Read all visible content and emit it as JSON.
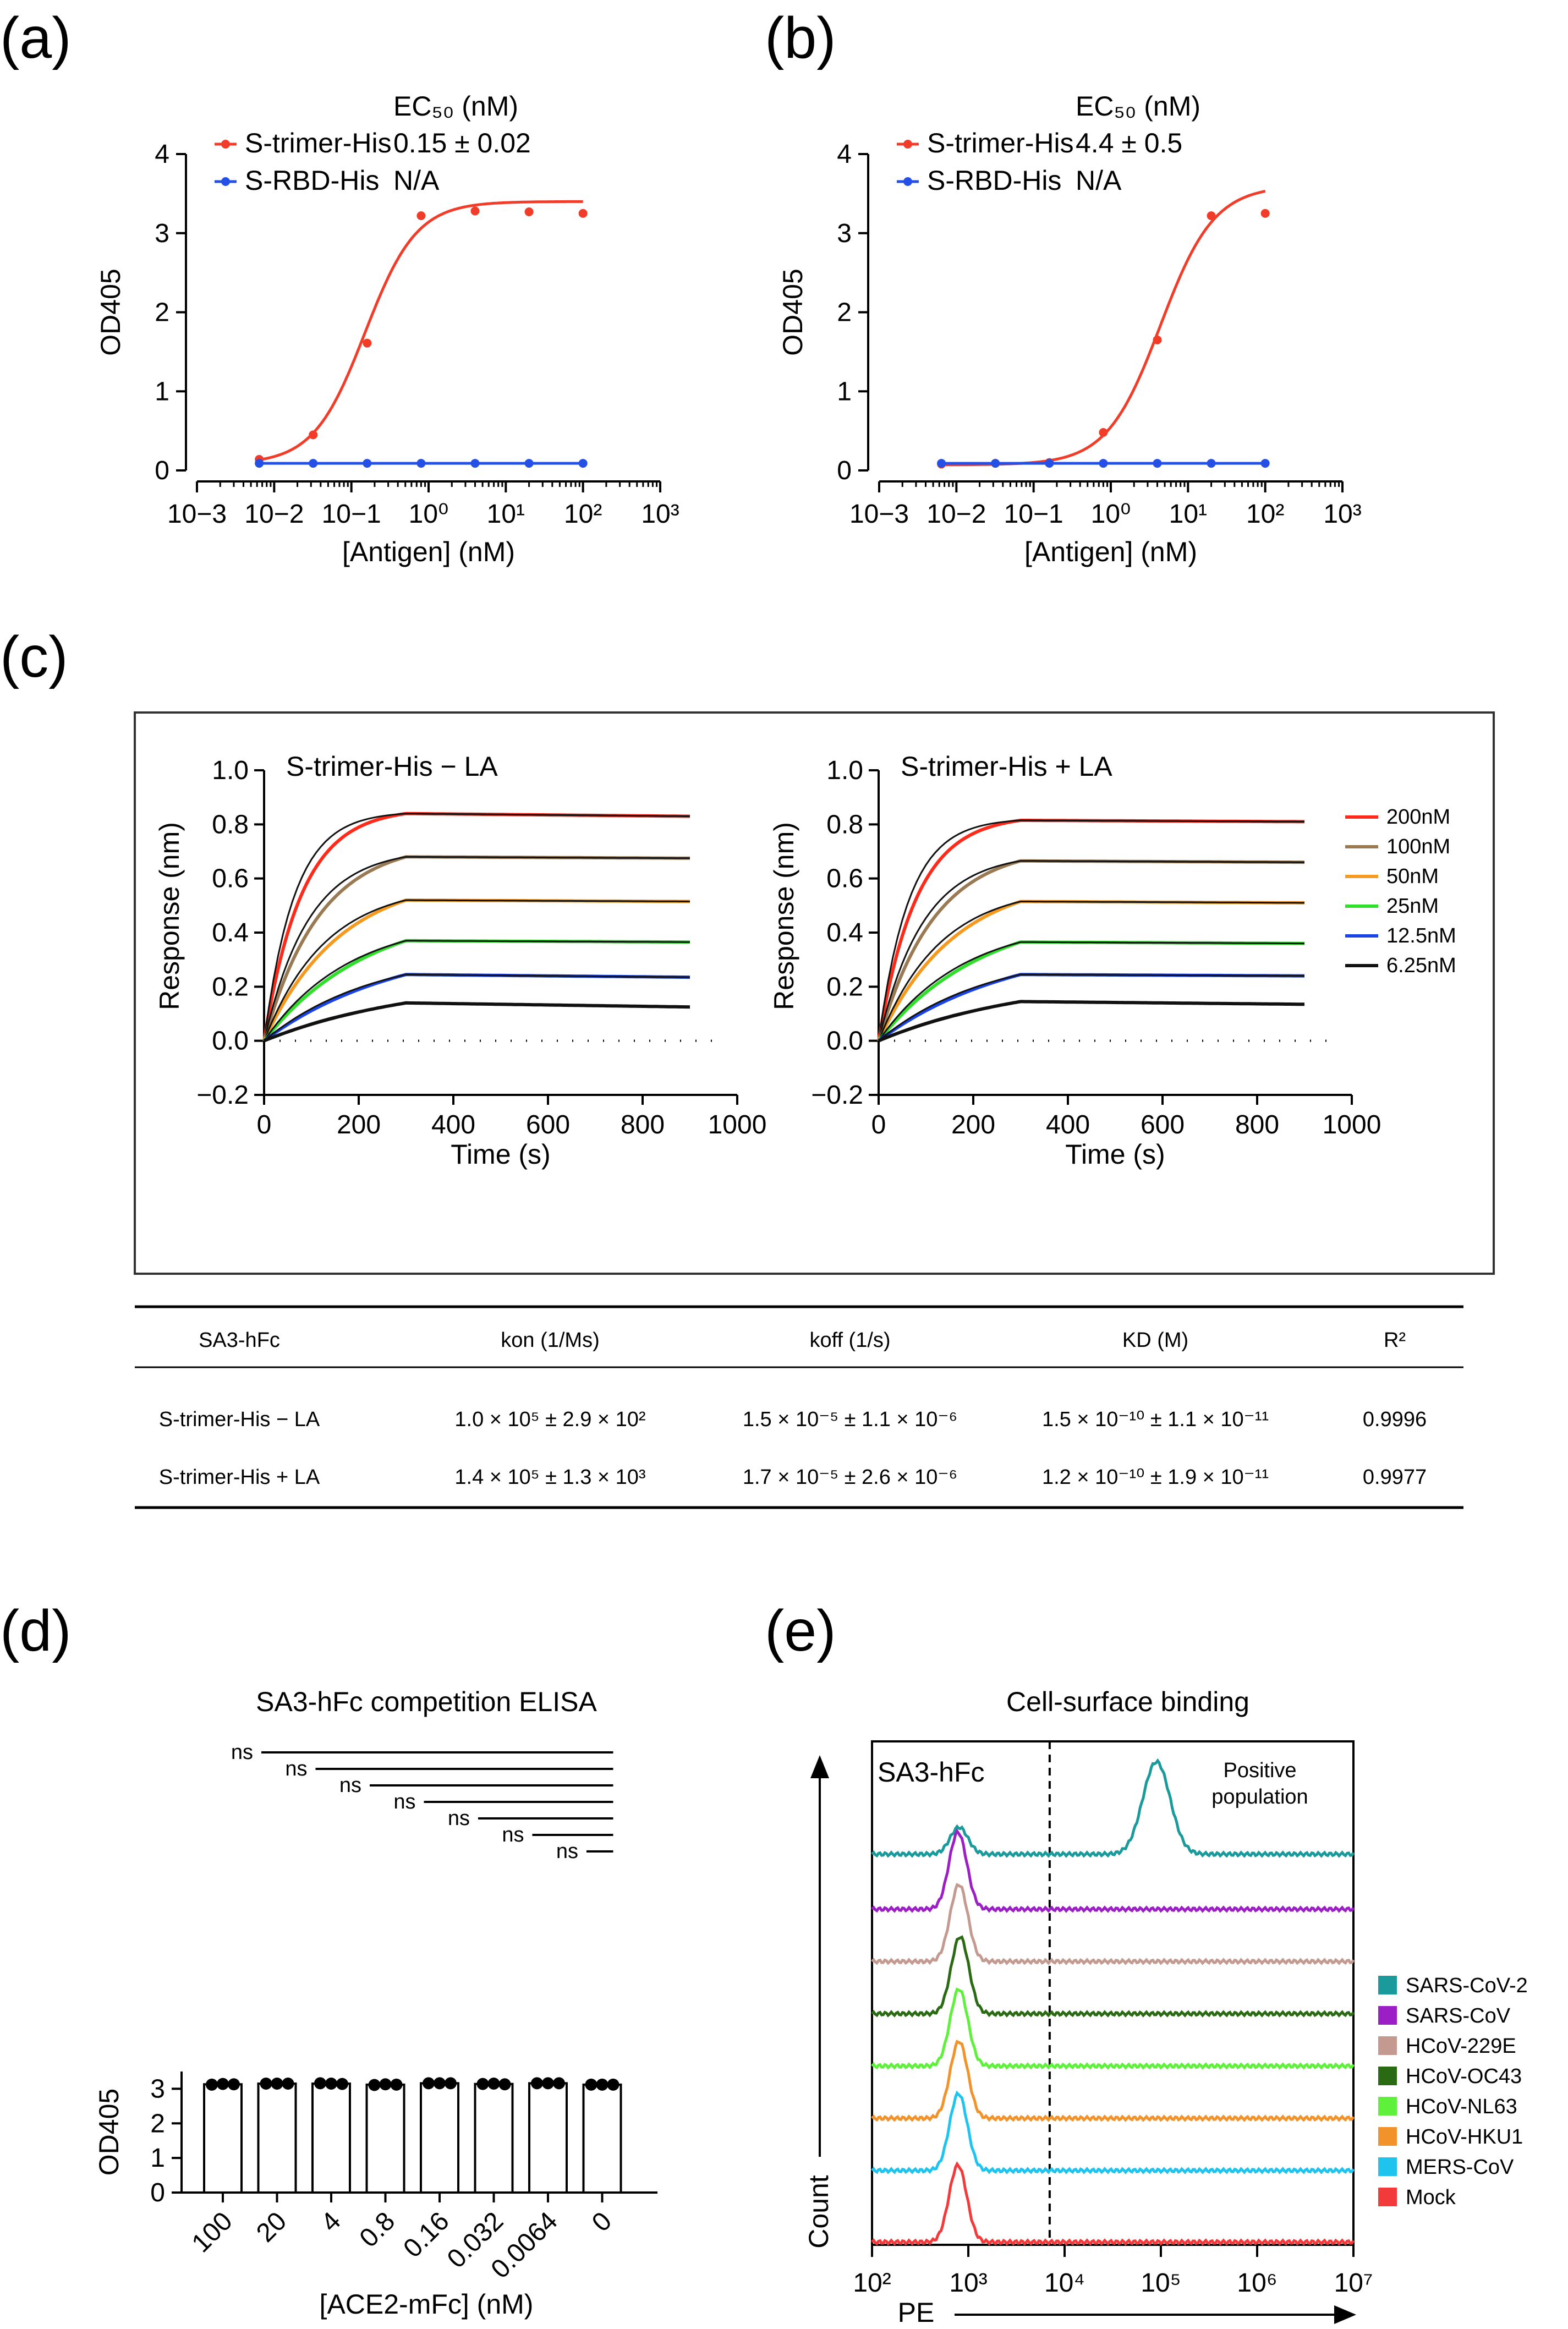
{
  "panels": {
    "a": "(a)",
    "b": "(b)",
    "c": "(c)",
    "d": "(d)",
    "e": "(e)"
  },
  "colors": {
    "trimer": "#f03c28",
    "rbd": "#2450e6",
    "c200": "#ff2a1a",
    "c100": "#9a7a52",
    "c50": "#f59a1e",
    "c25": "#2ee02a",
    "c12": "#1a44e8",
    "c6": "#111111"
  },
  "chart_data": [
    {
      "id": "a",
      "type": "line",
      "title": "",
      "xlabel": "[Antigen] (nM)",
      "ylabel": "OD405",
      "xscale": "log",
      "xlim": [
        0.001,
        1000
      ],
      "ylim": [
        0,
        4
      ],
      "xticks": [
        "10−3",
        "10−2",
        "10−1",
        "10⁰",
        "10¹",
        "10²",
        "10³"
      ],
      "yticks": [
        "0",
        "1",
        "2",
        "3",
        "4"
      ],
      "legend_header": "EC₅₀ (nM)",
      "series": [
        {
          "name": "S-trimer-His",
          "ec50_text": "0.15 ± 0.02",
          "x": [
            0.0064,
            0.032,
            0.16,
            0.8,
            4,
            20,
            100
          ],
          "y": [
            0.14,
            0.45,
            1.61,
            3.22,
            3.28,
            3.27,
            3.25
          ],
          "fit": {
            "bottom": 0.08,
            "top": 3.4,
            "ec50": 0.15,
            "hill": 1.3
          }
        },
        {
          "name": "S-RBD-His",
          "ec50_text": "N/A",
          "x": [
            0.0064,
            0.032,
            0.16,
            0.8,
            4,
            20,
            100
          ],
          "y": [
            0.09,
            0.09,
            0.09,
            0.09,
            0.09,
            0.09,
            0.09
          ]
        }
      ]
    },
    {
      "id": "b",
      "type": "line",
      "title": "",
      "xlabel": "[Antigen] (nM)",
      "ylabel": "OD405",
      "xscale": "log",
      "xlim": [
        0.001,
        1000
      ],
      "ylim": [
        0,
        4
      ],
      "xticks": [
        "10−3",
        "10−2",
        "10−1",
        "10⁰",
        "10¹",
        "10²",
        "10³"
      ],
      "yticks": [
        "0",
        "1",
        "2",
        "3",
        "4"
      ],
      "legend_header": "EC₅₀ (nM)",
      "series": [
        {
          "name": "S-trimer-His",
          "ec50_text": "4.4 ± 0.5",
          "x": [
            0.0064,
            0.032,
            0.16,
            0.8,
            4,
            20,
            100
          ],
          "y": [
            0.08,
            0.09,
            0.1,
            0.48,
            1.65,
            3.22,
            3.25
          ],
          "fit": {
            "bottom": 0.07,
            "top": 3.6,
            "ec50": 4.4,
            "hill": 1.25
          }
        },
        {
          "name": "S-RBD-His",
          "ec50_text": "N/A",
          "x": [
            0.0064,
            0.032,
            0.16,
            0.8,
            4,
            20,
            100
          ],
          "y": [
            0.09,
            0.09,
            0.09,
            0.09,
            0.09,
            0.09,
            0.09
          ]
        }
      ]
    },
    {
      "id": "c1",
      "type": "line",
      "title": "S-trimer-His − LA",
      "xlabel": "Time (s)",
      "ylabel": "Response (nm)",
      "xlim": [
        0,
        1000
      ],
      "ylim": [
        -0.2,
        1.0
      ],
      "xticks": [
        "0",
        "200",
        "400",
        "600",
        "800",
        "1000"
      ],
      "yticks": [
        "−0.2",
        "0.0",
        "0.2",
        "0.4",
        "0.6",
        "0.8",
        "1.0"
      ],
      "association_end_s": 300,
      "dissociation_end_s": 900,
      "series": [
        {
          "name": "200nM",
          "plateau": 0.84,
          "end": 0.83,
          "rate": 0.0125
        },
        {
          "name": "100nM",
          "plateau": 0.68,
          "end": 0.675,
          "rate": 0.0085
        },
        {
          "name": "50nM",
          "plateau": 0.52,
          "end": 0.515,
          "rate": 0.0062
        },
        {
          "name": "25nM",
          "plateau": 0.37,
          "end": 0.365,
          "rate": 0.0045
        },
        {
          "name": "12.5nM",
          "plateau": 0.245,
          "end": 0.235,
          "rate": 0.0035
        },
        {
          "name": "6.25nM",
          "plateau": 0.14,
          "end": 0.125,
          "rate": 0.003
        }
      ]
    },
    {
      "id": "c2",
      "type": "line",
      "title": "S-trimer-His + LA",
      "xlabel": "Time (s)",
      "ylabel": "Response (nm)",
      "xlim": [
        0,
        1000
      ],
      "ylim": [
        -0.2,
        1.0
      ],
      "xticks": [
        "0",
        "200",
        "400",
        "600",
        "800",
        "1000"
      ],
      "yticks": [
        "−0.2",
        "0.0",
        "0.2",
        "0.4",
        "0.6",
        "0.8",
        "1.0"
      ],
      "association_end_s": 300,
      "dissociation_end_s": 900,
      "series": [
        {
          "name": "200nM",
          "plateau": 0.815,
          "end": 0.81,
          "rate": 0.0125
        },
        {
          "name": "100nM",
          "plateau": 0.665,
          "end": 0.66,
          "rate": 0.0085
        },
        {
          "name": "50nM",
          "plateau": 0.515,
          "end": 0.51,
          "rate": 0.0062
        },
        {
          "name": "25nM",
          "plateau": 0.365,
          "end": 0.36,
          "rate": 0.0045
        },
        {
          "name": "12.5nM",
          "plateau": 0.245,
          "end": 0.24,
          "rate": 0.0035
        },
        {
          "name": "6.25nM",
          "plateau": 0.145,
          "end": 0.135,
          "rate": 0.003
        }
      ]
    },
    {
      "id": "c-table",
      "type": "table",
      "headers": [
        "SA3-hFc",
        "kon (1/Ms)",
        "koff (1/s)",
        "KD (M)",
        "R²"
      ],
      "rows": [
        [
          "S-trimer-His − LA",
          "1.0 × 10⁵ ± 2.9 × 10²",
          "1.5 × 10⁻⁵ ± 1.1 × 10⁻⁶",
          "1.5 × 10⁻¹⁰ ± 1.1 × 10⁻¹¹",
          "0.9996"
        ],
        [
          "S-trimer-His + LA",
          "1.4 × 10⁵ ± 1.3 × 10³",
          "1.7 × 10⁻⁵ ± 2.6 × 10⁻⁶",
          "1.2 × 10⁻¹⁰ ± 1.9 × 10⁻¹¹",
          "0.9977"
        ]
      ]
    },
    {
      "id": "d",
      "type": "bar",
      "title": "SA3-hFc competition ELISA",
      "xlabel": "[ACE2-mFc] (nM)",
      "ylabel": "OD405",
      "ylim": [
        0,
        3.5
      ],
      "yticks": [
        "0",
        "1",
        "2",
        "3"
      ],
      "categories": [
        "100",
        "20",
        "4",
        "0.8",
        "0.16",
        "0.032",
        "0.0064",
        "0"
      ],
      "values": [
        3.13,
        3.15,
        3.15,
        3.12,
        3.16,
        3.14,
        3.16,
        3.12
      ],
      "replicates": [
        [
          3.12,
          3.14,
          3.13
        ],
        [
          3.15,
          3.15,
          3.15
        ],
        [
          3.16,
          3.15,
          3.14
        ],
        [
          3.11,
          3.13,
          3.12
        ],
        [
          3.16,
          3.16,
          3.16
        ],
        [
          3.14,
          3.15,
          3.13
        ],
        [
          3.16,
          3.16,
          3.16
        ],
        [
          3.12,
          3.12,
          3.12
        ]
      ],
      "significance": [
        "ns",
        "ns",
        "ns",
        "ns",
        "ns",
        "ns",
        "ns"
      ]
    },
    {
      "id": "e",
      "type": "area",
      "title": "Cell-surface binding",
      "xlabel": "PE",
      "ylabel": "Count",
      "xscale": "log",
      "xlim": [
        100,
        10000000
      ],
      "xticks": [
        "10²",
        "10³",
        "10⁴",
        "10⁵",
        "10⁶",
        "10⁷"
      ],
      "inset_label": "SA3-hFc",
      "gate_label": "Positive population",
      "gate_x": 7000,
      "series": [
        {
          "name": "SARS-CoV-2",
          "color": "#1a9a9a",
          "peak_x": 800,
          "peak_h": 0.35,
          "pos_peak_x": 90000,
          "pos_peak_h": 0.6
        },
        {
          "name": "SARS-CoV",
          "color": "#9b1fc4",
          "peak_x": 780,
          "peak_h": 1.0
        },
        {
          "name": "HCoV-229E",
          "color": "#c49a90",
          "peak_x": 800,
          "peak_h": 1.0
        },
        {
          "name": "HCoV-OC43",
          "color": "#2a6a12",
          "peak_x": 820,
          "peak_h": 1.0
        },
        {
          "name": "HCoV-NL63",
          "color": "#5ef03a",
          "peak_x": 800,
          "peak_h": 1.0
        },
        {
          "name": "HCoV-HKU1",
          "color": "#f2922a",
          "peak_x": 800,
          "peak_h": 1.0
        },
        {
          "name": "MERS-CoV",
          "color": "#1ec4ee",
          "peak_x": 790,
          "peak_h": 1.0
        },
        {
          "name": "Mock",
          "color": "#f23a3a",
          "peak_x": 780,
          "peak_h": 1.0
        }
      ]
    }
  ]
}
